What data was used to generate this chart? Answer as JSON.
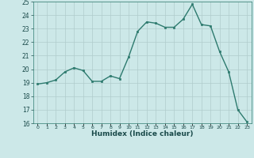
{
  "x": [
    0,
    1,
    2,
    3,
    4,
    5,
    6,
    7,
    8,
    9,
    10,
    11,
    12,
    13,
    14,
    15,
    16,
    17,
    18,
    19,
    20,
    21,
    22,
    23
  ],
  "y": [
    18.9,
    19.0,
    19.2,
    19.8,
    20.1,
    19.9,
    19.1,
    19.1,
    19.5,
    19.3,
    20.9,
    22.8,
    23.5,
    23.4,
    23.1,
    23.1,
    23.7,
    24.8,
    23.3,
    23.2,
    21.3,
    19.8,
    17.0,
    16.1
  ],
  "line_color": "#2d7a6e",
  "marker_color": "#2d7a6e",
  "bg_color": "#cce8e8",
  "grid_color": "#b0cccc",
  "xlabel": "Humidex (Indice chaleur)",
  "xlim": [
    -0.5,
    23.5
  ],
  "ylim": [
    16,
    25
  ],
  "yticks": [
    16,
    17,
    18,
    19,
    20,
    21,
    22,
    23,
    24,
    25
  ],
  "xtick_labels": [
    "0",
    "1",
    "2",
    "3",
    "4",
    "5",
    "6",
    "7",
    "8",
    "9",
    "10",
    "11",
    "12",
    "13",
    "14",
    "15",
    "16",
    "17",
    "18",
    "19",
    "20",
    "21",
    "22",
    "23"
  ]
}
